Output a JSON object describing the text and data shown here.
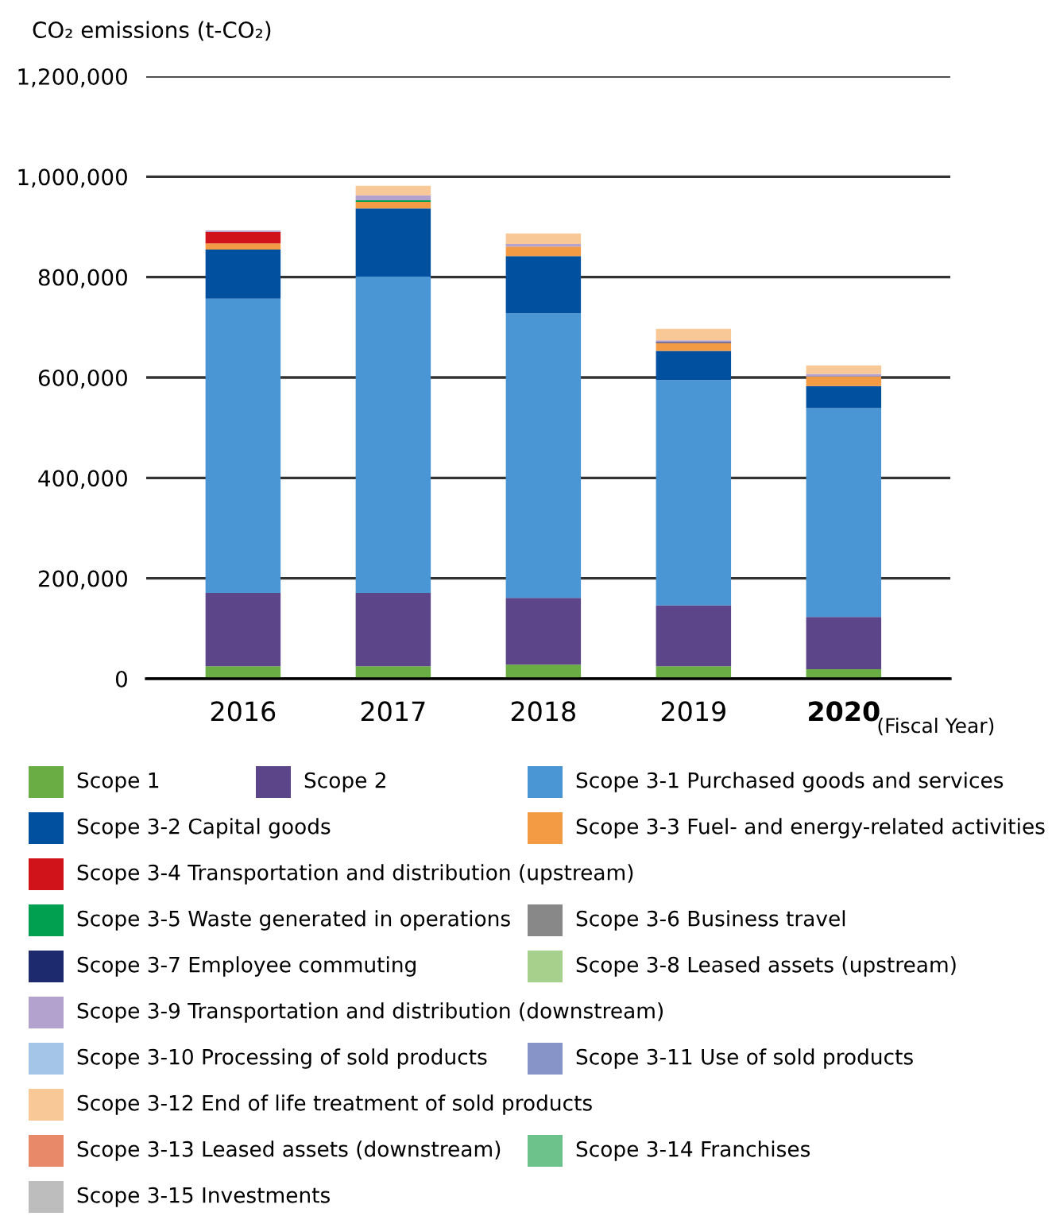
{
  "chart_data": {
    "type": "bar",
    "stacked": true,
    "ylabel": "CO₂ emissions (t-CO₂)",
    "xlabel": "(Fiscal Year)",
    "categories": [
      "2016",
      "2017",
      "2018",
      "2019",
      "2020"
    ],
    "ylim": [
      0,
      1200000
    ],
    "yticks": [
      {
        "value": 0,
        "label": "0"
      },
      {
        "value": 200000,
        "label": "200,000"
      },
      {
        "value": 400000,
        "label": "400,000"
      },
      {
        "value": 600000,
        "label": "600,000"
      },
      {
        "value": 800000,
        "label": "800,000"
      },
      {
        "value": 1000000,
        "label": "1,000,000"
      },
      {
        "value": 1200000,
        "label": "1,200,000"
      }
    ],
    "grid": "y",
    "legend": "bottom",
    "series": [
      {
        "name": "Scope 1",
        "color": "#6aad45",
        "values": [
          25000,
          25000,
          28000,
          25000,
          19000
        ]
      },
      {
        "name": "Scope 2",
        "color": "#5c4589",
        "values": [
          146000,
          146000,
          133000,
          121000,
          104000
        ]
      },
      {
        "name": "Scope 3-1 Purchased goods and services",
        "color": "#4a95d3",
        "values": [
          586000,
          630000,
          567000,
          449000,
          416000
        ]
      },
      {
        "name": "Scope 3-2 Capital goods",
        "color": "#0050a0",
        "values": [
          98000,
          136000,
          114000,
          58000,
          44000
        ]
      },
      {
        "name": "Scope 3-3 Fuel- and energy-related activities",
        "color": "#f39a45",
        "values": [
          12000,
          13000,
          19000,
          16000,
          19000
        ]
      },
      {
        "name": "Scope 3-4 Transportation and distribution (upstream)",
        "color": "#d0121b",
        "values": [
          23000,
          0,
          0,
          0,
          0
        ]
      },
      {
        "name": "Scope 3-5 Waste generated in operations",
        "color": "#00a050",
        "values": [
          0,
          3000,
          0,
          0,
          0
        ]
      },
      {
        "name": "Scope 3-6 Business travel",
        "color": "#888888",
        "values": [
          0,
          0,
          0,
          0,
          0
        ]
      },
      {
        "name": "Scope 3-7 Employee commuting",
        "color": "#1e2a6e",
        "values": [
          0,
          0,
          0,
          2000,
          0
        ]
      },
      {
        "name": "Scope 3-8 Leased assets (upstream)",
        "color": "#a8d08d",
        "values": [
          0,
          0,
          0,
          0,
          0
        ]
      },
      {
        "name": "Scope 3-9 Transportation and distribution (downstream)",
        "color": "#b3a2cd",
        "values": [
          3000,
          10000,
          5000,
          3000,
          5000
        ]
      },
      {
        "name": "Scope 3-10 Processing of sold products",
        "color": "#a4c4e8",
        "values": [
          0,
          0,
          0,
          0,
          0
        ]
      },
      {
        "name": "Scope 3-11 Use of sold products",
        "color": "#8794c8",
        "values": [
          0,
          0,
          0,
          0,
          0
        ]
      },
      {
        "name": "Scope 3-12 End of life treatment of sold products",
        "color": "#f9c897",
        "values": [
          0,
          19000,
          21000,
          23000,
          17000
        ]
      },
      {
        "name": "Scope 3-13 Leased assets (downstream)",
        "color": "#e8896a",
        "values": [
          0,
          0,
          0,
          0,
          0
        ]
      },
      {
        "name": "Scope 3-14 Franchises",
        "color": "#6dc18a",
        "values": [
          0,
          0,
          0,
          0,
          0
        ]
      },
      {
        "name": "Scope 3-15 Investments",
        "color": "#bdbdbd",
        "values": [
          0,
          0,
          0,
          0,
          0
        ]
      }
    ]
  }
}
